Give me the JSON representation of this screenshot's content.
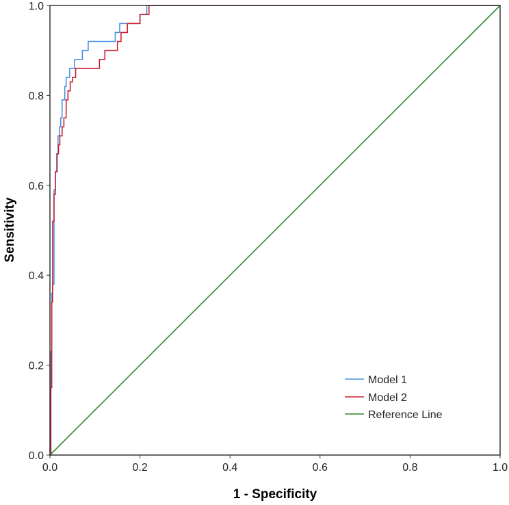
{
  "chart_data": {
    "type": "line",
    "title": "",
    "xlabel": "1 - Specificity",
    "ylabel": "Sensitivity",
    "xlim": [
      0,
      1
    ],
    "ylim": [
      0,
      1
    ],
    "xticks": [
      "0.0",
      "0.2",
      "0.4",
      "0.6",
      "0.8",
      "1.0"
    ],
    "yticks": [
      "0.0",
      "0.2",
      "0.4",
      "0.6",
      "0.8",
      "1.0"
    ],
    "grid": false,
    "legend_position": "bottom-right",
    "series": [
      {
        "name": "Model 1",
        "color": "#4a90e2",
        "x": [
          0,
          0.002,
          0.002,
          0.004,
          0.004,
          0.006,
          0.006,
          0.009,
          0.009,
          0.012,
          0.012,
          0.015,
          0.015,
          0.018,
          0.018,
          0.021,
          0.021,
          0.024,
          0.024,
          0.027,
          0.027,
          0.03,
          0.03,
          0.033,
          0.033,
          0.036,
          0.036,
          0.04,
          0.04,
          0.044,
          0.044,
          0.048,
          0.048,
          0.055,
          0.055,
          0.06,
          0.06,
          0.072,
          0.072,
          0.085,
          0.085,
          0.105,
          0.105,
          0.145,
          0.145,
          0.155,
          0.155,
          0.175,
          0.175,
          0.2,
          0.2,
          0.21,
          0.21,
          0.215,
          0.215,
          1.0
        ],
        "y": [
          0,
          0,
          0.23,
          0.23,
          0.36,
          0.36,
          0.38,
          0.38,
          0.59,
          0.59,
          0.63,
          0.63,
          0.67,
          0.67,
          0.71,
          0.71,
          0.73,
          0.73,
          0.75,
          0.75,
          0.79,
          0.79,
          0.79,
          0.79,
          0.82,
          0.82,
          0.84,
          0.84,
          0.84,
          0.84,
          0.86,
          0.86,
          0.86,
          0.86,
          0.88,
          0.88,
          0.88,
          0.88,
          0.9,
          0.9,
          0.92,
          0.92,
          0.92,
          0.92,
          0.94,
          0.94,
          0.96,
          0.96,
          0.96,
          0.96,
          0.98,
          0.98,
          0.98,
          0.98,
          1.0,
          1.0
        ]
      },
      {
        "name": "Model 2",
        "color": "#cc1f2f",
        "x": [
          0,
          0.002,
          0.002,
          0.004,
          0.004,
          0.006,
          0.006,
          0.009,
          0.009,
          0.012,
          0.012,
          0.016,
          0.016,
          0.019,
          0.019,
          0.022,
          0.022,
          0.027,
          0.027,
          0.031,
          0.031,
          0.036,
          0.036,
          0.04,
          0.04,
          0.045,
          0.045,
          0.05,
          0.05,
          0.057,
          0.057,
          0.09,
          0.09,
          0.11,
          0.11,
          0.122,
          0.122,
          0.15,
          0.15,
          0.158,
          0.158,
          0.172,
          0.172,
          0.2,
          0.2,
          0.22,
          0.22,
          1.0
        ],
        "y": [
          0,
          0,
          0.15,
          0.15,
          0.34,
          0.34,
          0.52,
          0.52,
          0.58,
          0.58,
          0.63,
          0.63,
          0.67,
          0.67,
          0.69,
          0.69,
          0.71,
          0.71,
          0.73,
          0.73,
          0.75,
          0.75,
          0.79,
          0.79,
          0.81,
          0.81,
          0.83,
          0.83,
          0.84,
          0.84,
          0.86,
          0.86,
          0.86,
          0.86,
          0.88,
          0.88,
          0.9,
          0.9,
          0.92,
          0.92,
          0.94,
          0.94,
          0.96,
          0.96,
          0.98,
          0.98,
          1.0,
          1.0
        ]
      },
      {
        "name": "Reference Line",
        "color": "#2e8b2e",
        "x": [
          0,
          1
        ],
        "y": [
          0,
          1
        ]
      }
    ]
  }
}
